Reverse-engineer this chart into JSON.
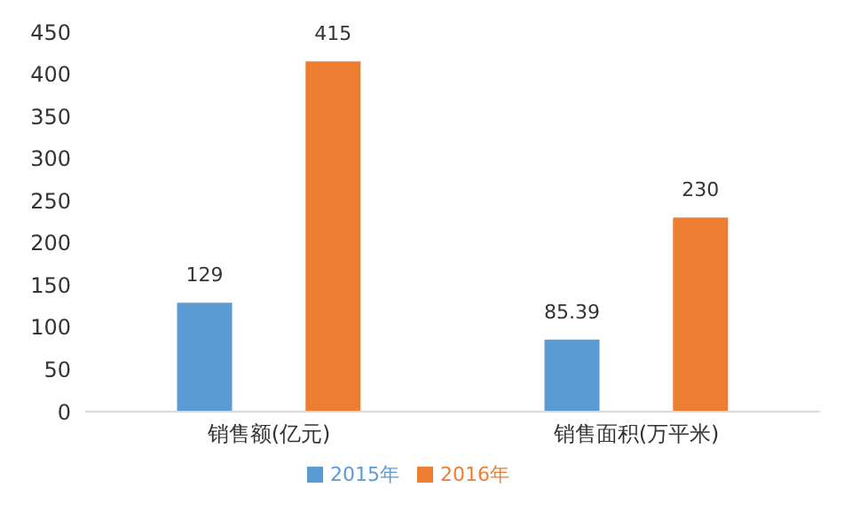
{
  "chart_data": {
    "type": "bar",
    "categories": [
      "销售额(亿元)",
      "销售面积(万平米)"
    ],
    "series": [
      {
        "name": "2015年",
        "color": "#5b9bd5",
        "values": [
          129,
          85.39
        ]
      },
      {
        "name": "2016年",
        "color": "#ed7d31",
        "values": [
          415,
          230
        ]
      }
    ],
    "ylim": [
      0,
      450
    ],
    "yticks": [
      0,
      50,
      100,
      150,
      200,
      250,
      300,
      350,
      400,
      450
    ],
    "grid": false,
    "legend": "bottom",
    "data_labels": true
  }
}
